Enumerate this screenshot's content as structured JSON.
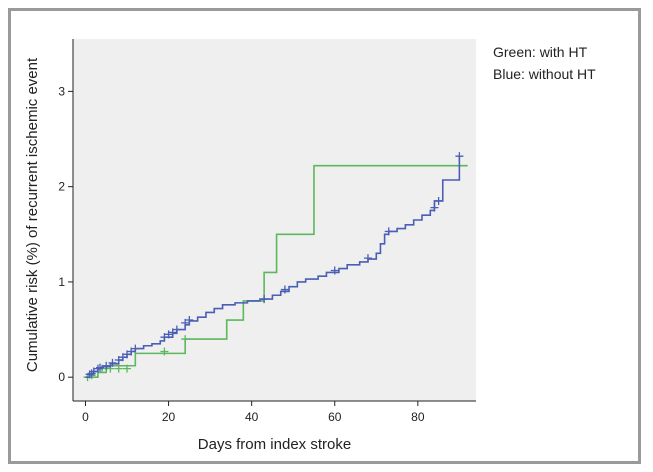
{
  "chart_data": {
    "type": "line",
    "xlabel": "Days from index stroke",
    "ylabel": "Cumulative risk (%) of recurrent ischemic event",
    "xlim": [
      -3,
      94
    ],
    "ylim": [
      -0.25,
      3.55
    ],
    "x_ticks": [
      0,
      20,
      40,
      60,
      80
    ],
    "y_ticks": [
      0,
      1,
      2,
      3
    ],
    "grid": false,
    "legend_position": "top-right",
    "legend_lines": [
      "Green: with HT",
      "Blue: without HT"
    ],
    "series": [
      {
        "color": "#5cb85c",
        "step_points": [
          [
            0,
            0
          ],
          [
            3,
            0.05
          ],
          [
            5,
            0.12
          ],
          [
            11,
            0.12
          ],
          [
            12,
            0.25
          ],
          [
            24,
            0.25
          ],
          [
            24,
            0.4
          ],
          [
            34,
            0.4
          ],
          [
            34,
            0.6
          ],
          [
            38,
            0.6
          ],
          [
            38,
            0.8
          ],
          [
            43,
            0.8
          ],
          [
            43,
            1.1
          ],
          [
            46,
            1.1
          ],
          [
            46,
            1.5
          ],
          [
            55,
            1.5
          ],
          [
            55,
            2.22
          ],
          [
            92,
            2.22
          ]
        ],
        "censored": [
          [
            0.5,
            0
          ],
          [
            1.5,
            0.02
          ],
          [
            4,
            0.09
          ],
          [
            6,
            0.09
          ],
          [
            8,
            0.09
          ],
          [
            10,
            0.09
          ],
          [
            19,
            0.27
          ],
          [
            24,
            0.4
          ]
        ]
      },
      {
        "color": "#4a5eb5",
        "step_points": [
          [
            0,
            0
          ],
          [
            1,
            0.03
          ],
          [
            2,
            0.06
          ],
          [
            3,
            0.09
          ],
          [
            4,
            0.11
          ],
          [
            6,
            0.14
          ],
          [
            8,
            0.18
          ],
          [
            9,
            0.21
          ],
          [
            10,
            0.24
          ],
          [
            11,
            0.27
          ],
          [
            12,
            0.3
          ],
          [
            14,
            0.33
          ],
          [
            16,
            0.35
          ],
          [
            18,
            0.38
          ],
          [
            19,
            0.42
          ],
          [
            21,
            0.46
          ],
          [
            22,
            0.5
          ],
          [
            24,
            0.55
          ],
          [
            25,
            0.59
          ],
          [
            27,
            0.63
          ],
          [
            29,
            0.68
          ],
          [
            31,
            0.72
          ],
          [
            33,
            0.76
          ],
          [
            36,
            0.78
          ],
          [
            39,
            0.8
          ],
          [
            42,
            0.82
          ],
          [
            45,
            0.86
          ],
          [
            47,
            0.9
          ],
          [
            49,
            0.95
          ],
          [
            51,
            1.0
          ],
          [
            53,
            1.03
          ],
          [
            56,
            1.06
          ],
          [
            58,
            1.1
          ],
          [
            61,
            1.14
          ],
          [
            63,
            1.18
          ],
          [
            66,
            1.21
          ],
          [
            68,
            1.24
          ],
          [
            70,
            1.3
          ],
          [
            71,
            1.4
          ],
          [
            72,
            1.5
          ],
          [
            73,
            1.53
          ],
          [
            75,
            1.56
          ],
          [
            77,
            1.6
          ],
          [
            79,
            1.65
          ],
          [
            81,
            1.7
          ],
          [
            83,
            1.75
          ],
          [
            84,
            1.85
          ],
          [
            86,
            2.07
          ],
          [
            88,
            2.07
          ],
          [
            90,
            2.2
          ],
          [
            90,
            2.32
          ]
        ],
        "censored": [
          [
            1,
            0.03
          ],
          [
            1.5,
            0.04
          ],
          [
            2,
            0.06
          ],
          [
            3,
            0.09
          ],
          [
            3.5,
            0.1
          ],
          [
            5,
            0.12
          ],
          [
            6.5,
            0.15
          ],
          [
            8,
            0.18
          ],
          [
            9,
            0.21
          ],
          [
            10,
            0.24
          ],
          [
            11,
            0.27
          ],
          [
            12,
            0.3
          ],
          [
            19,
            0.42
          ],
          [
            20,
            0.45
          ],
          [
            21,
            0.47
          ],
          [
            22,
            0.5
          ],
          [
            24,
            0.57
          ],
          [
            25,
            0.6
          ],
          [
            43,
            0.82
          ],
          [
            48,
            0.92
          ],
          [
            60,
            1.12
          ],
          [
            68,
            1.25
          ],
          [
            73,
            1.53
          ],
          [
            84,
            1.78
          ],
          [
            85,
            1.85
          ],
          [
            90,
            2.32
          ]
        ]
      }
    ]
  }
}
